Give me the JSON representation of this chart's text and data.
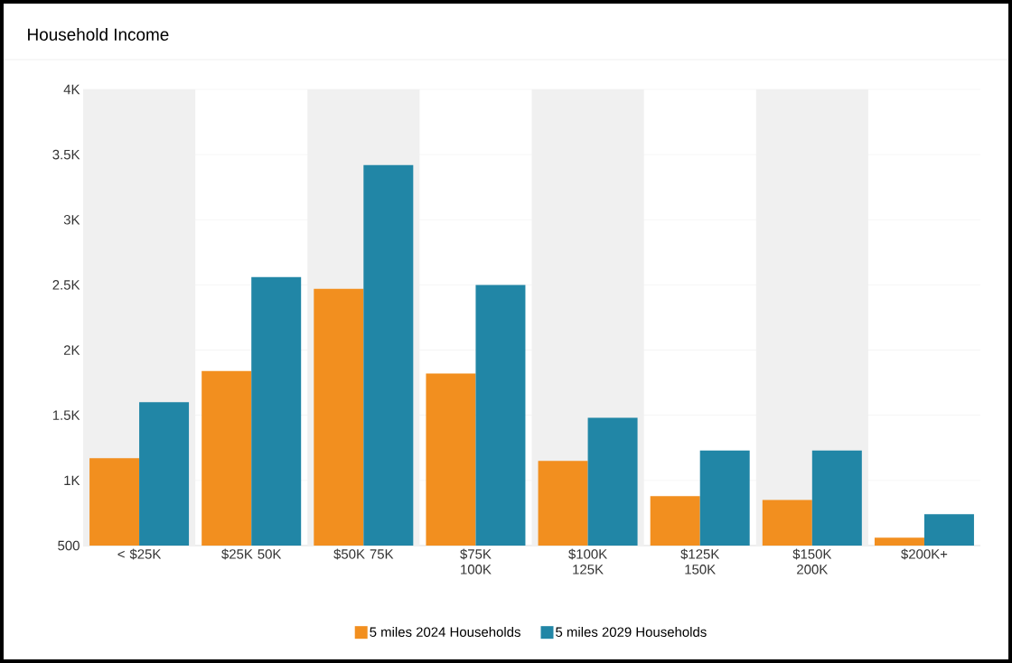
{
  "chart_data": {
    "type": "bar",
    "title": "Household Income",
    "categories": [
      "< $25K",
      "$25K 50K",
      "$50K 75K",
      "$75K 100K",
      "$100K 125K",
      "$125K 150K",
      "$150K 200K",
      "$200K+"
    ],
    "series": [
      {
        "name": "5 miles 2024 Households",
        "color": "#f28f1f",
        "values": [
          1170,
          1840,
          2470,
          1820,
          1150,
          880,
          850,
          560
        ]
      },
      {
        "name": "5 miles 2029 Households",
        "color": "#2186a6",
        "values": [
          1600,
          2560,
          3420,
          2500,
          1480,
          1230,
          1230,
          740
        ]
      }
    ],
    "ylim": [
      500,
      4000
    ],
    "yticks": [
      500,
      {
        "value": 1000,
        "label": "1K"
      },
      {
        "value": 1500,
        "label": "1.5K"
      },
      {
        "value": 2000,
        "label": "2K"
      },
      {
        "value": 2500,
        "label": "2.5K"
      },
      {
        "value": 3000,
        "label": "3K"
      },
      {
        "value": 3500,
        "label": "3.5K"
      },
      {
        "value": 4000,
        "label": "4K"
      }
    ],
    "grid": "y",
    "legend": "bottom"
  }
}
